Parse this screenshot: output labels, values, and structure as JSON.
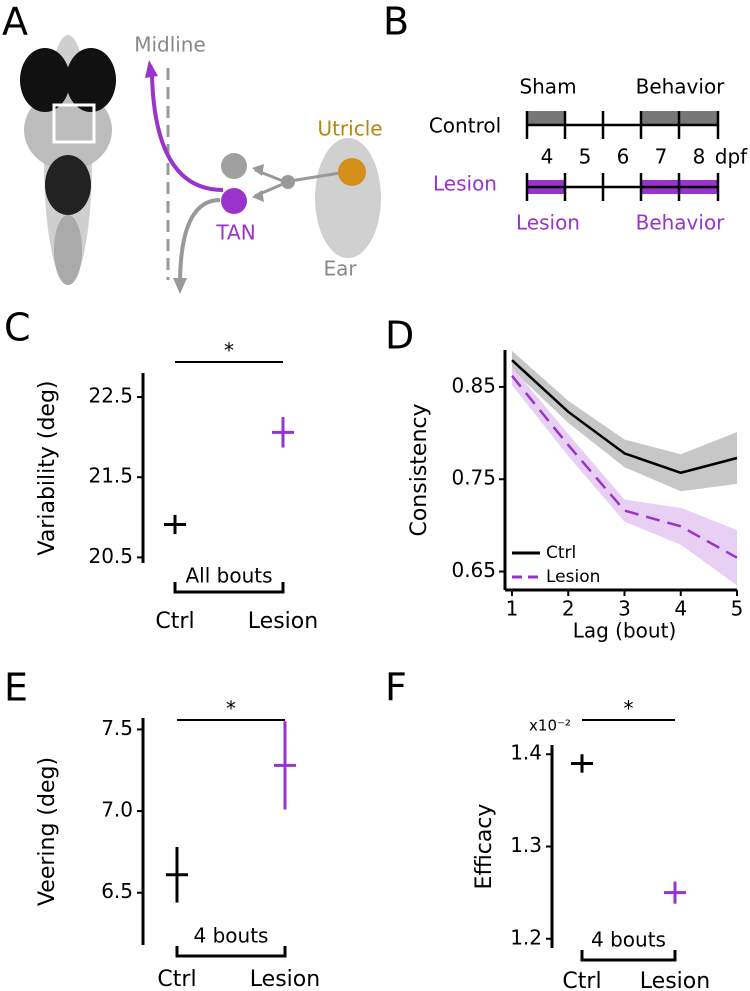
{
  "panel_labels": [
    "A",
    "B",
    "C",
    "D",
    "E",
    "F"
  ],
  "panel_a": {
    "labels": [
      "Midline",
      "Utricle",
      "TAN",
      "Ear"
    ]
  },
  "panel_b": {
    "top_labels": [
      "Sham",
      "Behavior"
    ],
    "rows": [
      "Control",
      "Lesion"
    ],
    "days": [
      4,
      5,
      6,
      7,
      8
    ],
    "unit": "dpf",
    "bottom_labels": [
      "Lesion",
      "Behavior"
    ]
  },
  "chart_data": [
    {
      "type": "errorbar",
      "y_label": "Variability (deg)",
      "categories": [
        "Ctrl",
        "Lesion"
      ],
      "values": [
        20.91,
        22.06
      ],
      "errors": [
        0.12,
        0.19
      ],
      "colors": [
        "#000000",
        "#9933cc"
      ],
      "ylim": [
        20.43,
        22.8
      ],
      "yticks": [
        20.5,
        21.5,
        22.5
      ],
      "note": "All bouts",
      "significance": "*"
    },
    {
      "type": "line",
      "y_label": "Consistency",
      "x_label": "Lag (bout)",
      "x": [
        1,
        2,
        3,
        4,
        5
      ],
      "series": [
        {
          "name": "Ctrl",
          "color": "#000000",
          "band_color": "#bdbdbd",
          "dashed": false,
          "values": [
            0.879,
            0.823,
            0.778,
            0.757,
            0.773
          ],
          "errors": [
            0.01,
            0.012,
            0.015,
            0.02,
            0.028
          ]
        },
        {
          "name": "Lesion",
          "color": "#9933cc",
          "band_color": "#e3c8f2",
          "dashed": true,
          "values": [
            0.862,
            0.787,
            0.716,
            0.699,
            0.665
          ],
          "errors": [
            0.01,
            0.012,
            0.012,
            0.02,
            0.03
          ]
        }
      ],
      "xlim": [
        1,
        5
      ],
      "xticks": [
        1,
        2,
        3,
        4,
        5
      ],
      "ylim": [
        0.63,
        0.89
      ],
      "yticks": [
        0.65,
        0.75,
        0.85
      ],
      "legend": "lower left"
    },
    {
      "type": "errorbar",
      "y_label": "Veering (deg)",
      "categories": [
        "Ctrl",
        "Lesion"
      ],
      "values": [
        6.61,
        7.28
      ],
      "errors": [
        0.17,
        0.27
      ],
      "colors": [
        "#000000",
        "#9933cc"
      ],
      "ylim": [
        6.18,
        7.57
      ],
      "yticks": [
        6.5,
        {
          "value": 7,
          "label": "7.0"
        },
        7.5
      ],
      "note": "4 bouts",
      "significance": "*"
    },
    {
      "type": "errorbar",
      "y_label": "Efficacy",
      "categories": [
        "Ctrl",
        "Lesion"
      ],
      "values": [
        1.39,
        1.25
      ],
      "errors": [
        0.01,
        0.012
      ],
      "colors": [
        "#000000",
        "#9933cc"
      ],
      "ylim": [
        1.19,
        1.41
      ],
      "yticks": [
        1.2,
        1.3,
        1.4
      ],
      "multiplier": "x10⁻²",
      "note": "4 bouts",
      "significance": "*"
    }
  ]
}
